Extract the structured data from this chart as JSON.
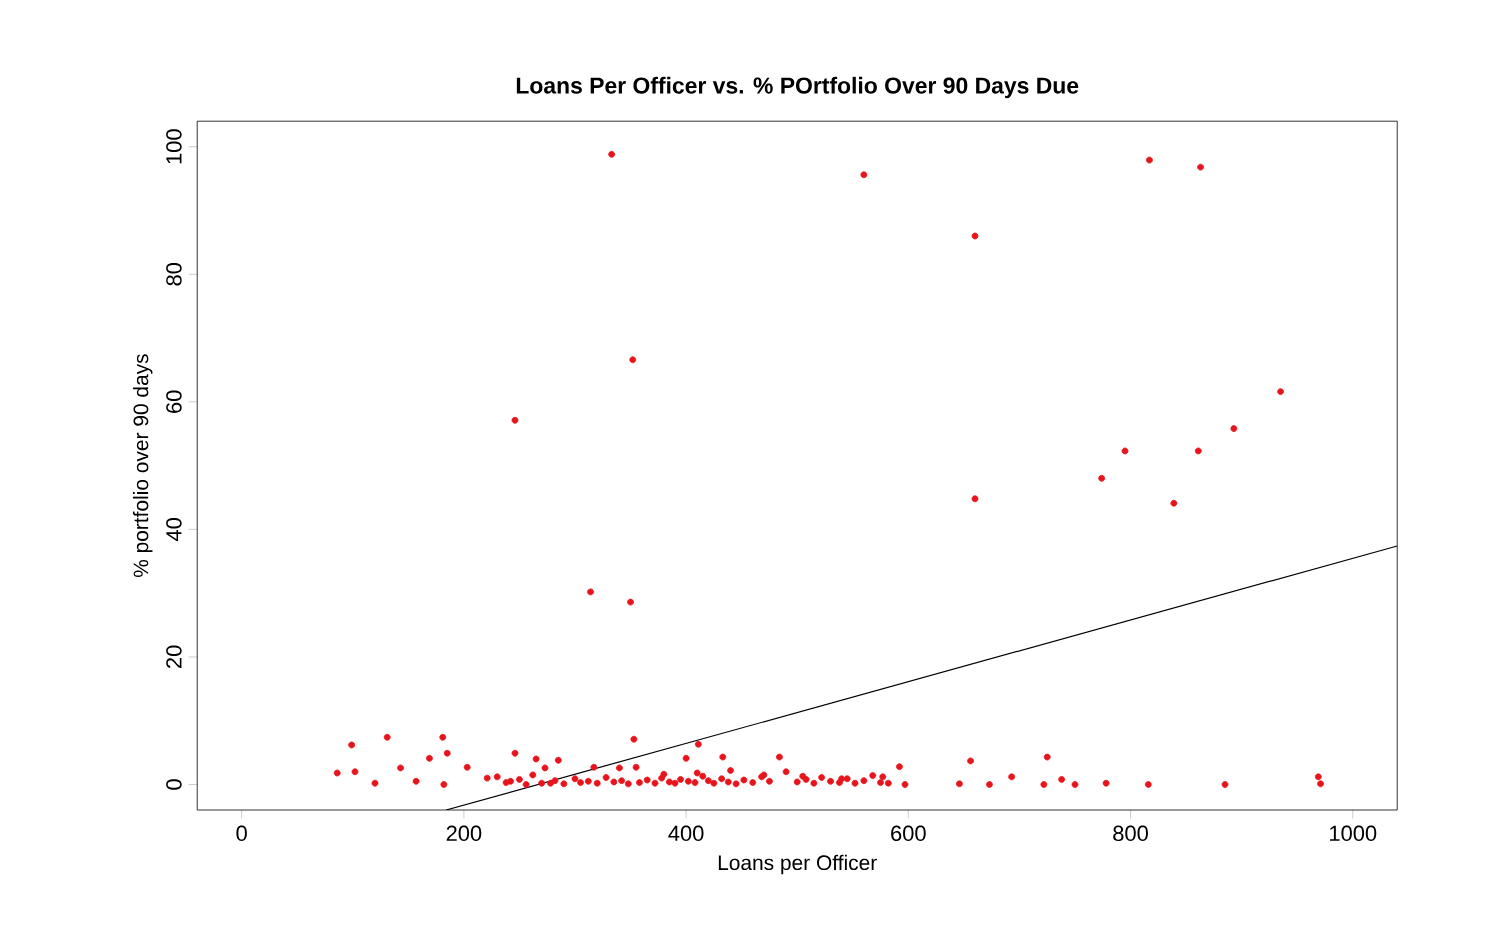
{
  "chart_data": {
    "type": "scatter",
    "title": "Loans Per Officer vs. % POrtfolio Over 90 Days Due",
    "xlabel": "Loans per Officer",
    "ylabel": "% portfolio over 90 days",
    "xlim": [
      -40,
      1040
    ],
    "ylim": [
      -4,
      104
    ],
    "xticks": [
      0,
      200,
      400,
      600,
      800,
      1000
    ],
    "yticks": [
      0,
      20,
      40,
      60,
      80,
      100
    ],
    "grid": false,
    "series": [
      {
        "marker": "circle",
        "color": "#e8141c",
        "x": [
          333,
          560,
          817,
          863,
          660,
          352,
          935,
          246,
          893,
          795,
          861,
          774,
          660,
          839,
          314,
          350,
          86,
          102,
          99,
          131,
          120,
          143,
          157,
          169,
          181,
          185,
          182,
          203,
          221,
          242,
          246,
          256,
          265,
          273,
          285,
          278,
          317,
          340,
          353,
          355,
          411,
          400,
          433,
          484,
          230,
          238,
          250,
          262,
          270,
          282,
          290,
          300,
          305,
          312,
          320,
          328,
          335,
          342,
          348,
          358,
          365,
          372,
          378,
          385,
          390,
          395,
          402,
          408,
          415,
          420,
          425,
          432,
          438,
          445,
          452,
          460,
          468,
          475,
          490,
          500,
          508,
          515,
          522,
          530,
          538,
          545,
          552,
          560,
          568,
          575,
          592,
          656,
          646,
          673,
          693,
          725,
          722,
          738,
          750,
          778,
          816,
          885,
          969,
          971,
          577,
          582,
          597,
          380,
          410,
          440,
          470,
          505,
          540
        ],
        "values": [
          98.8,
          95.6,
          97.9,
          96.8,
          86.0,
          66.6,
          61.6,
          57.1,
          55.8,
          52.3,
          52.3,
          48.0,
          44.8,
          44.1,
          30.2,
          28.6,
          1.8,
          2.0,
          6.2,
          7.4,
          0.2,
          2.6,
          0.5,
          4.1,
          7.4,
          4.9,
          0,
          2.7,
          1.0,
          0.5,
          4.9,
          0,
          4.0,
          2.6,
          3.8,
          0.2,
          2.7,
          2.6,
          7.1,
          2.7,
          6.3,
          4.1,
          4.3,
          4.3,
          1.2,
          0.3,
          0.8,
          1.5,
          0.2,
          0.6,
          0.1,
          0.9,
          0.3,
          0.5,
          0.2,
          1.1,
          0.4,
          0.6,
          0.1,
          0.3,
          0.7,
          0.2,
          1.0,
          0.4,
          0.2,
          0.8,
          0.5,
          0.3,
          1.3,
          0.6,
          0.2,
          0.9,
          0.4,
          0.1,
          0.7,
          0.3,
          1.2,
          0.5,
          2.0,
          0.4,
          0.8,
          0.2,
          1.1,
          0.5,
          0.3,
          0.9,
          0.2,
          0.6,
          1.4,
          0.3,
          2.8,
          3.7,
          0.1,
          0,
          1.2,
          4.3,
          0,
          0.8,
          0,
          0.2,
          0,
          0,
          1.2,
          0.1,
          1.2,
          0.2,
          0,
          1.6,
          1.8,
          2.2,
          1.5,
          1.3,
          0.9
        ]
      },
      {
        "type": "line",
        "marker": "none",
        "color": "#000000",
        "x": [
          184,
          1040
        ],
        "values": [
          -4,
          37.4
        ]
      }
    ]
  }
}
